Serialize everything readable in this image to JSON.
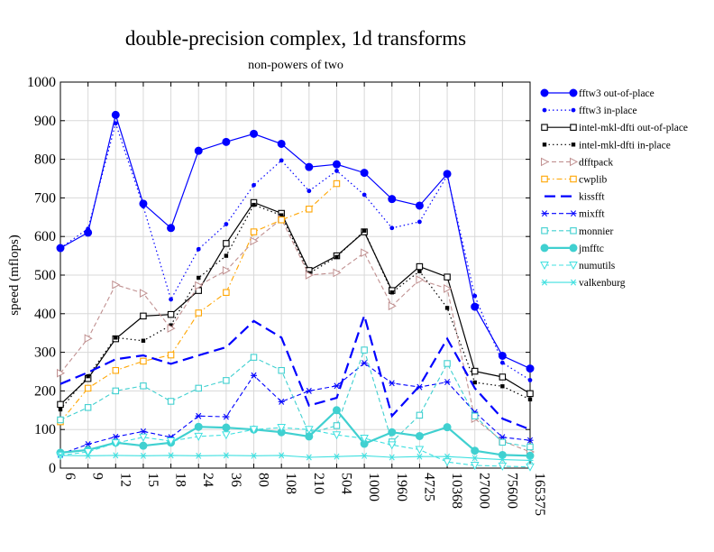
{
  "chart_data": {
    "type": "line",
    "title": "double-precision complex, 1d transforms",
    "subtitle": "non-powers of two",
    "xlabel": "",
    "ylabel": "speed (mflops)",
    "ylim": [
      0,
      1000
    ],
    "yticks": [
      0,
      100,
      200,
      300,
      400,
      500,
      600,
      700,
      800,
      900,
      1000
    ],
    "categories": [
      "6",
      "9",
      "12",
      "15",
      "18",
      "24",
      "36",
      "80",
      "108",
      "210",
      "504",
      "1000",
      "1960",
      "4725",
      "10368",
      "27000",
      "75600",
      "165375"
    ],
    "grid": true,
    "legend_position": "right",
    "series": [
      {
        "name": "fftw3 out-of-place",
        "color": "#0000ff",
        "dash": "solid",
        "marker": "circle-filled",
        "width": 1.2,
        "values": [
          570,
          610,
          915,
          685,
          622,
          822,
          845,
          866,
          840,
          780,
          787,
          765,
          697,
          680,
          762,
          418,
          291,
          258
        ]
      },
      {
        "name": "fftw3 in-place",
        "color": "#0000ff",
        "dash": "dotted",
        "marker": "dot",
        "width": 1.2,
        "values": [
          570,
          620,
          893,
          678,
          437,
          567,
          632,
          733,
          797,
          718,
          770,
          708,
          622,
          638,
          758,
          446,
          273,
          228
        ]
      },
      {
        "name": "intel-mkl-dfti out-of-place",
        "color": "#000000",
        "dash": "solid",
        "marker": "square-open",
        "width": 1.2,
        "values": [
          165,
          232,
          335,
          394,
          398,
          460,
          582,
          688,
          660,
          512,
          550,
          612,
          460,
          522,
          495,
          251,
          236,
          193
        ]
      },
      {
        "name": "intel-mkl-dfti in-place",
        "color": "#000000",
        "dash": "dotted",
        "marker": "square-small",
        "width": 1.2,
        "values": [
          152,
          238,
          338,
          330,
          370,
          493,
          550,
          682,
          655,
          505,
          547,
          615,
          455,
          510,
          415,
          222,
          212,
          178
        ]
      },
      {
        "name": "dfftpack",
        "color": "#c09090",
        "dash": "dashed",
        "marker": "triangle-right",
        "width": 1.1,
        "values": [
          246,
          336,
          475,
          453,
          362,
          473,
          512,
          588,
          645,
          500,
          506,
          558,
          420,
          488,
          465,
          128,
          70,
          42
        ]
      },
      {
        "name": "cwplib",
        "color": "#ffa500",
        "dash": "dashdot",
        "marker": "square-open",
        "width": 1.1,
        "values": [
          120,
          207,
          253,
          277,
          293,
          402,
          455,
          612,
          643,
          671,
          737,
          null,
          null,
          null,
          null,
          null,
          null,
          null
        ]
      },
      {
        "name": "kissfft",
        "color": "#0000ff",
        "dash": "longdash",
        "marker": "none",
        "width": 2.2,
        "values": [
          218,
          248,
          282,
          292,
          270,
          292,
          313,
          381,
          338,
          162,
          182,
          395,
          135,
          213,
          335,
          207,
          128,
          100
        ]
      },
      {
        "name": "mixfft",
        "color": "#0000ff",
        "dash": "dashed",
        "marker": "asterisk",
        "width": 1.1,
        "values": [
          36,
          62,
          81,
          95,
          80,
          135,
          133,
          240,
          172,
          200,
          213,
          272,
          220,
          210,
          223,
          145,
          80,
          72
        ]
      },
      {
        "name": "monnier",
        "color": "#40d0d0",
        "dash": "dashed",
        "marker": "square-open",
        "width": 1.1,
        "values": [
          125,
          157,
          200,
          213,
          173,
          207,
          227,
          287,
          253,
          90,
          110,
          306,
          68,
          137,
          271,
          135,
          67,
          55
        ]
      },
      {
        "name": "jmfftc",
        "color": "#40d0d0",
        "dash": "solid",
        "marker": "circle-filled",
        "width": 2.2,
        "values": [
          40,
          47,
          66,
          58,
          66,
          107,
          105,
          100,
          93,
          82,
          150,
          63,
          93,
          83,
          106,
          45,
          34,
          32
        ]
      },
      {
        "name": "numutils",
        "color": "#40e0e0",
        "dash": "dashed",
        "marker": "triangle-down",
        "width": 1.1,
        "values": [
          33,
          42,
          65,
          80,
          70,
          82,
          86,
          100,
          105,
          100,
          86,
          77,
          60,
          48,
          16,
          7,
          5,
          3
        ]
      },
      {
        "name": "valkenburg",
        "color": "#40e0e0",
        "dash": "solid",
        "marker": "asterisk",
        "width": 1.1,
        "values": [
          33,
          32,
          33,
          32,
          33,
          32,
          33,
          32,
          33,
          28,
          30,
          32,
          28,
          30,
          30,
          26,
          22,
          20
        ]
      }
    ]
  }
}
